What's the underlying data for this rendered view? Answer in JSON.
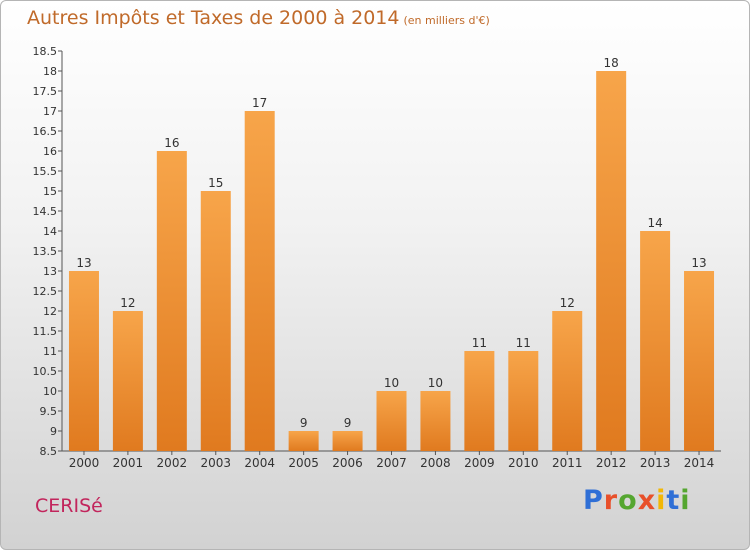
{
  "title": "Autres Impôts et Taxes de 2000 à 2014",
  "unit_label": "(en milliers d'€)",
  "place": "CERISé",
  "logo": {
    "text": "Proxiti",
    "letter_colors": [
      "#2f6fd6",
      "#e8502a",
      "#55a630",
      "#e8502a",
      "#f2b705",
      "#2f6fd6",
      "#55a630"
    ]
  },
  "colors": {
    "bar_top": "#f7a54a",
    "bar_bottom": "#e07a1f",
    "text": "#333333",
    "axis": "#555555"
  },
  "chart_data": {
    "type": "bar",
    "categories": [
      "2000",
      "2001",
      "2002",
      "2003",
      "2004",
      "2005",
      "2006",
      "2007",
      "2008",
      "2009",
      "2010",
      "2011",
      "2012",
      "2013",
      "2014"
    ],
    "values": [
      13,
      12,
      16,
      15,
      17,
      9,
      9,
      10,
      10,
      11,
      11,
      12,
      18,
      14,
      13
    ],
    "data_labels": [
      "13",
      "12",
      "16",
      "15",
      "17",
      "9",
      "9",
      "10",
      "10",
      "11",
      "11",
      "12",
      "18",
      "14",
      "13"
    ],
    "yticks": [
      "8.5",
      "9",
      "9.5",
      "10",
      "10.5",
      "11",
      "11.5",
      "12",
      "12.5",
      "13",
      "13.5",
      "14",
      "14.5",
      "15",
      "15.5",
      "16",
      "16.5",
      "17",
      "17.5",
      "18",
      "18.5"
    ],
    "ylim": [
      8.5,
      18.5
    ],
    "grid": false,
    "legend": "none"
  }
}
